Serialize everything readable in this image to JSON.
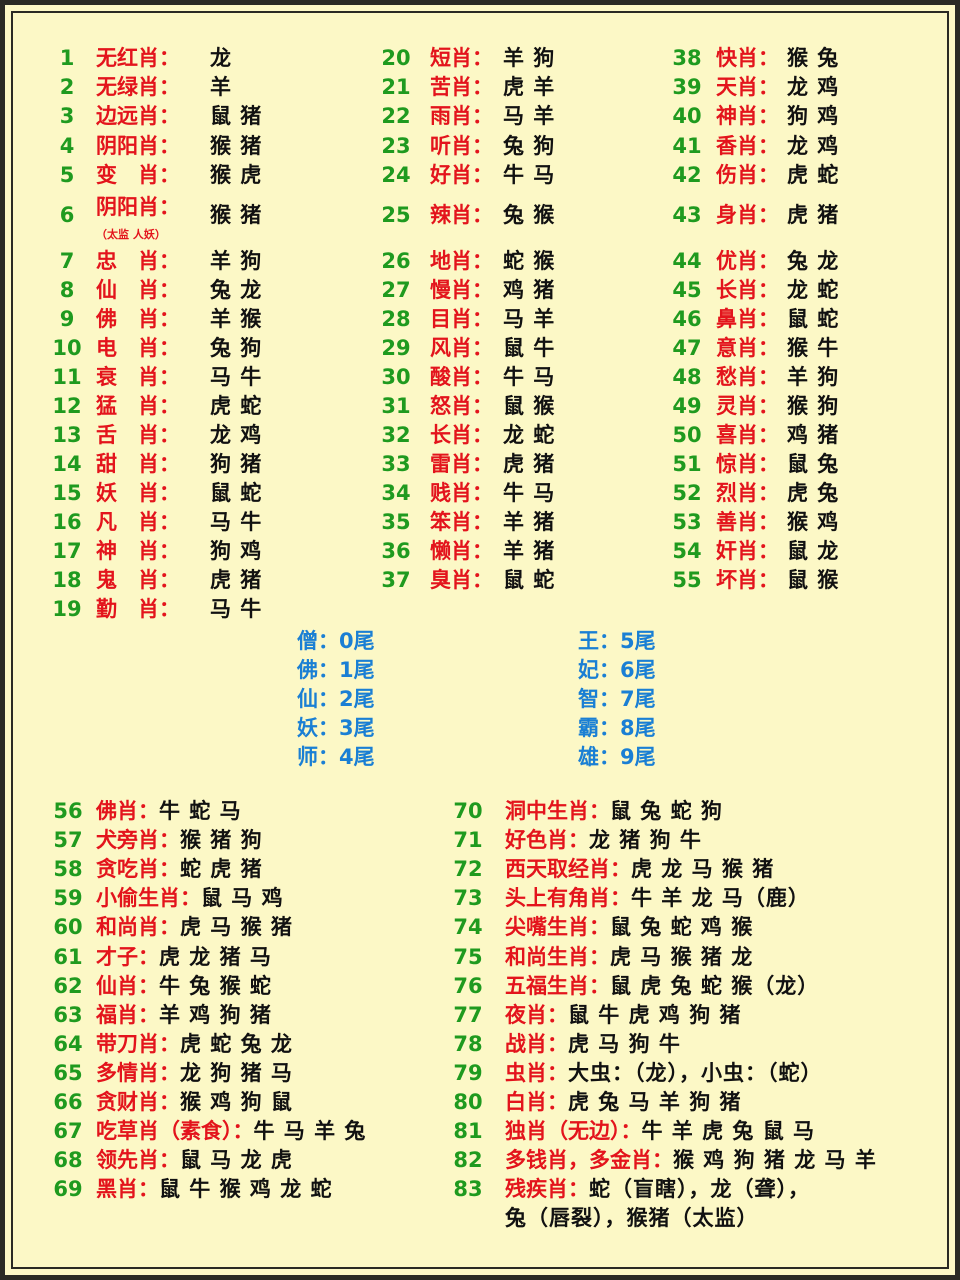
{
  "top": {
    "columns": [
      [
        {
          "num": 1,
          "label": "无红肖：",
          "value": "龙"
        },
        {
          "num": 2,
          "label": "无绿肖：",
          "value": "羊"
        },
        {
          "num": 3,
          "label": "边远肖：",
          "value": "鼠 猪"
        },
        {
          "num": 4,
          "label": "阴阳肖：",
          "value": "猴 猪"
        },
        {
          "num": 5,
          "label": "变　肖：",
          "value": "猴 虎"
        },
        {
          "num": 6,
          "label": "阴阳肖：",
          "note": "（太监 人妖）",
          "value": "猴 猪"
        },
        {
          "num": 7,
          "label": "忠　肖：",
          "value": "羊 狗"
        },
        {
          "num": 8,
          "label": "仙　肖：",
          "value": "兔 龙"
        },
        {
          "num": 9,
          "label": "佛　肖：",
          "value": "羊 猴"
        },
        {
          "num": 10,
          "label": "电　肖：",
          "value": "兔 狗"
        },
        {
          "num": 11,
          "label": "衰　肖：",
          "value": "马 牛"
        },
        {
          "num": 12,
          "label": "猛　肖：",
          "value": "虎 蛇"
        },
        {
          "num": 13,
          "label": "舌　肖：",
          "value": "龙 鸡"
        },
        {
          "num": 14,
          "label": "甜　肖：",
          "value": "狗 猪"
        },
        {
          "num": 15,
          "label": "妖　肖：",
          "value": "鼠 蛇"
        },
        {
          "num": 16,
          "label": "凡　肖：",
          "value": "马 牛"
        },
        {
          "num": 17,
          "label": "神　肖：",
          "value": "狗 鸡"
        },
        {
          "num": 18,
          "label": "鬼　肖：",
          "value": "虎 猪"
        },
        {
          "num": 19,
          "label": "勤　肖：",
          "value": "马 牛"
        }
      ],
      [
        {
          "num": 20,
          "label": "短肖：",
          "value": "羊 狗"
        },
        {
          "num": 21,
          "label": "苦肖：",
          "value": "虎 羊"
        },
        {
          "num": 22,
          "label": "雨肖：",
          "value": "马 羊"
        },
        {
          "num": 23,
          "label": "听肖：",
          "value": "兔 狗"
        },
        {
          "num": 24,
          "label": "好肖：",
          "value": "牛 马"
        },
        {
          "num": 25,
          "label": "辣肖：",
          "value": "兔 猴"
        },
        {
          "num": 26,
          "label": "地肖：",
          "value": "蛇 猴"
        },
        {
          "num": 27,
          "label": "慢肖：",
          "value": "鸡 猪"
        },
        {
          "num": 28,
          "label": "目肖：",
          "value": "马 羊"
        },
        {
          "num": 29,
          "label": "风肖：",
          "value": "鼠 牛"
        },
        {
          "num": 30,
          "label": "酸肖：",
          "value": "牛 马"
        },
        {
          "num": 31,
          "label": "怒肖：",
          "value": "鼠 猴"
        },
        {
          "num": 32,
          "label": "长肖：",
          "value": "龙 蛇"
        },
        {
          "num": 33,
          "label": "雷肖：",
          "value": "虎 猪"
        },
        {
          "num": 34,
          "label": "贱肖：",
          "value": "牛 马"
        },
        {
          "num": 35,
          "label": "笨肖：",
          "value": "羊 猪"
        },
        {
          "num": 36,
          "label": "懒肖：",
          "value": "羊 猪"
        },
        {
          "num": 37,
          "label": "臭肖：",
          "value": "鼠 蛇"
        }
      ],
      [
        {
          "num": 38,
          "label": "快肖：",
          "value": "猴 兔"
        },
        {
          "num": 39,
          "label": "天肖：",
          "value": "龙 鸡"
        },
        {
          "num": 40,
          "label": "神肖：",
          "value": "狗 鸡"
        },
        {
          "num": 41,
          "label": "香肖：",
          "value": "龙 鸡"
        },
        {
          "num": 42,
          "label": "伤肖：",
          "value": "虎 蛇"
        },
        {
          "num": 43,
          "label": "身肖：",
          "value": "虎 猪"
        },
        {
          "num": 44,
          "label": "优肖：",
          "value": "兔 龙"
        },
        {
          "num": 45,
          "label": "长肖：",
          "value": "龙 蛇"
        },
        {
          "num": 46,
          "label": "鼻肖：",
          "value": "鼠 蛇"
        },
        {
          "num": 47,
          "label": "意肖：",
          "value": "猴 牛"
        },
        {
          "num": 48,
          "label": "愁肖：",
          "value": "羊 狗"
        },
        {
          "num": 49,
          "label": "灵肖：",
          "value": "猴 狗"
        },
        {
          "num": 50,
          "label": "喜肖：",
          "value": "鸡 猪"
        },
        {
          "num": 51,
          "label": "惊肖：",
          "value": "鼠 兔"
        },
        {
          "num": 52,
          "label": "烈肖：",
          "value": "虎 兔"
        },
        {
          "num": 53,
          "label": "善肖：",
          "value": "猴 鸡"
        },
        {
          "num": 54,
          "label": "奸肖：",
          "value": "鼠 龙"
        },
        {
          "num": 55,
          "label": "坏肖：",
          "value": "鼠 猴"
        }
      ]
    ]
  },
  "tails": {
    "columns": [
      [
        "僧：0尾",
        "佛：1尾",
        "仙：2尾",
        "妖：3尾",
        "师：4尾"
      ],
      [
        "王：5尾",
        "妃：6尾",
        "智：7尾",
        "霸：8尾",
        "雄：9尾"
      ]
    ]
  },
  "bottom": {
    "columns": [
      [
        {
          "num": 56,
          "label": "佛肖：",
          "value": "牛 蛇 马"
        },
        {
          "num": 57,
          "label": "犬旁肖：",
          "value": "猴 猪 狗"
        },
        {
          "num": 58,
          "label": "贪吃肖：",
          "value": "蛇 虎 猪"
        },
        {
          "num": 59,
          "label": "小偷生肖：",
          "value": "鼠 马 鸡"
        },
        {
          "num": 60,
          "label": "和尚肖：",
          "value": "虎 马 猴 猪"
        },
        {
          "num": 61,
          "label": "才子：",
          "value": "虎 龙 猪 马"
        },
        {
          "num": 62,
          "label": "仙肖：",
          "value": "牛 兔 猴 蛇"
        },
        {
          "num": 63,
          "label": "福肖：",
          "value": "羊 鸡 狗 猪"
        },
        {
          "num": 64,
          "label": "带刀肖：",
          "value": "虎 蛇 兔 龙"
        },
        {
          "num": 65,
          "label": "多情肖：",
          "value": "龙 狗 猪 马"
        },
        {
          "num": 66,
          "label": "贪财肖：",
          "value": "猴 鸡 狗 鼠"
        },
        {
          "num": 67,
          "label": "吃草肖（素食）：",
          "value": "牛 马 羊 兔"
        },
        {
          "num": 68,
          "label": "领先肖：",
          "value": "鼠 马 龙  虎"
        },
        {
          "num": 69,
          "label": "黑肖：",
          "value": "鼠 牛 猴 鸡 龙 蛇"
        }
      ],
      [
        {
          "num": 70,
          "label": "洞中生肖：",
          "value": "鼠 兔 蛇 狗"
        },
        {
          "num": 71,
          "label": "好色肖：",
          "value": "龙 猪 狗 牛"
        },
        {
          "num": 72,
          "label": "西天取经肖：",
          "value": "虎 龙 马 猴 猪"
        },
        {
          "num": 73,
          "label": "头上有角肖：",
          "value": "牛 羊 龙 马（鹿）"
        },
        {
          "num": 74,
          "label": "尖嘴生肖：",
          "value": "鼠 兔 蛇 鸡 猴"
        },
        {
          "num": 75,
          "label": "和尚生肖：",
          "value": "虎 马 猴 猪 龙"
        },
        {
          "num": 76,
          "label": "五福生肖：",
          "value": "鼠 虎 兔 蛇 猴（龙）"
        },
        {
          "num": 77,
          "label": "夜肖：",
          "value": "鼠 牛 虎 鸡 狗 猪"
        },
        {
          "num": 78,
          "label": "战肖：",
          "value": "虎 马 狗 牛"
        },
        {
          "num": 79,
          "label": "虫肖：",
          "value": "大虫：（龙），小虫：（蛇）"
        },
        {
          "num": 80,
          "label": "白肖：",
          "value": "虎 兔 马 羊 狗 猪"
        },
        {
          "num": 81,
          "label": "独肖（无边）：",
          "value": "牛 羊 虎 兔 鼠 马"
        },
        {
          "num": 82,
          "label": "多钱肖，多金肖：",
          "value": "猴 鸡 狗 猪 龙 马 羊"
        },
        {
          "num": 83,
          "label": "残疾肖：",
          "value": "蛇（盲瞎），龙（聋），",
          "value_line2": "兔（唇裂），猴猪（太监）"
        }
      ]
    ]
  }
}
